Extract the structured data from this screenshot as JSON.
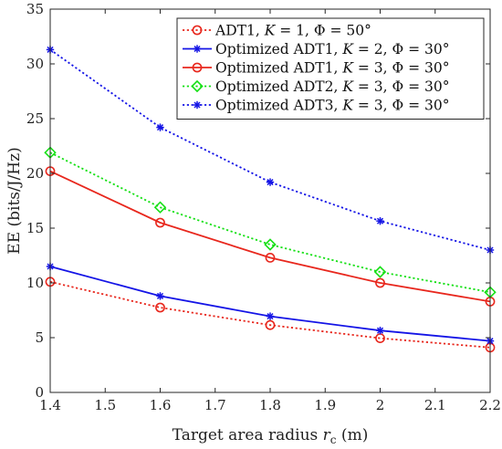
{
  "chart_data": {
    "type": "line",
    "xlabel": "Target area radius r_c (m)",
    "ylabel": "EE (bits/J/Hz)",
    "xlim": [
      1.4,
      2.2
    ],
    "ylim": [
      0,
      35
    ],
    "x_ticks": [
      "1.4",
      "1.5",
      "1.6",
      "1.7",
      "1.8",
      "1.9",
      "2",
      "2.1",
      "2.2"
    ],
    "y_ticks": [
      "0",
      "5",
      "10",
      "15",
      "20",
      "25",
      "30",
      "35"
    ],
    "grid": false,
    "legend_position": "top-right",
    "x": [
      1.4,
      1.6,
      1.8,
      2.0,
      2.2
    ],
    "series": [
      {
        "name": "ADT1, K = 1, Φ = 50°",
        "values": [
          10.1,
          7.75,
          6.15,
          4.95,
          4.1
        ],
        "color": "#e8271d",
        "dash": "dotted",
        "marker": "circle"
      },
      {
        "name": "Optimized ADT1, K = 2, Φ = 30°",
        "values": [
          11.5,
          8.8,
          6.95,
          5.65,
          4.7
        ],
        "color": "#1414e6",
        "dash": "solid",
        "marker": "asterisk"
      },
      {
        "name": "Optimized ADT1, K = 3, Φ = 30°",
        "values": [
          20.2,
          15.5,
          12.3,
          10.0,
          8.3
        ],
        "color": "#e8271d",
        "dash": "solid",
        "marker": "circle"
      },
      {
        "name": "Optimized ADT2, K = 3, Φ = 30°",
        "values": [
          21.9,
          16.9,
          13.5,
          11.0,
          9.15
        ],
        "color": "#16e016",
        "dash": "dotted",
        "marker": "diamond"
      },
      {
        "name": "Optimized ADT3, K = 3, Φ = 30°",
        "values": [
          31.3,
          24.2,
          19.2,
          15.65,
          13.0
        ],
        "color": "#1414e6",
        "dash": "dotted",
        "marker": "asterisk"
      }
    ]
  }
}
